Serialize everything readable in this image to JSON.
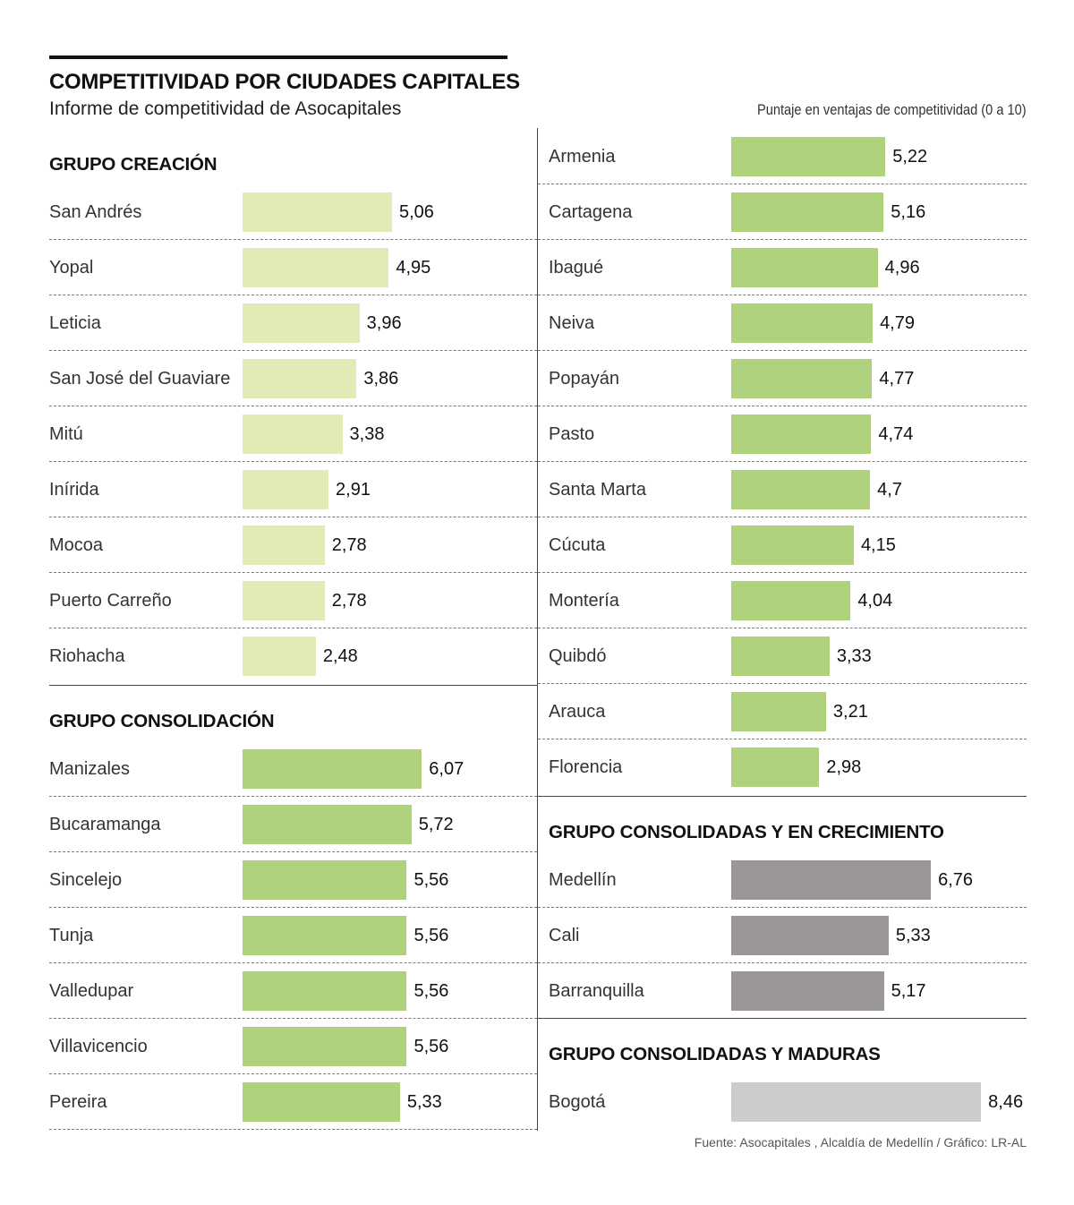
{
  "header": {
    "title": "COMPETITIVIDAD POR CIUDADES CAPITALES",
    "subtitle": "Informe de competitividad de Asocapitales",
    "unit_note": "Puntaje en ventajas de competitividad (0 a 10)"
  },
  "footer": {
    "source": "Fuente: Asocapitales , Alcaldía de Medellín / Gráfico: LR-AL"
  },
  "colors": {
    "creacion": "#e2eab5",
    "consolidacion": "#b0d27c",
    "crecimiento": "#9b9798",
    "maduras": "#cccccc"
  },
  "chart_data": {
    "type": "bar",
    "orientation": "horizontal",
    "title": "COMPETITIVIDAD POR CIUDADES CAPITALES",
    "subtitle": "Informe de competitividad de Asocapitales",
    "xlabel": "Puntaje en ventajas de competitividad (0 a 10)",
    "xlim": [
      0,
      10
    ],
    "grid": false,
    "legend": "none",
    "groups": [
      {
        "name": "GRUPO CREACIÓN",
        "color_key": "creacion",
        "categories": [
          "San Andrés",
          "Yopal",
          "Leticia",
          "San José del Guaviare",
          "Mitú",
          "Inírida",
          "Mocoa",
          "Puerto Carreño",
          "Riohacha"
        ],
        "values": [
          5.06,
          4.95,
          3.96,
          3.86,
          3.38,
          2.91,
          2.78,
          2.78,
          2.48
        ],
        "labels": [
          "5,06",
          "4,95",
          "3,96",
          "3,86",
          "3,38",
          "2,91",
          "2,78",
          "2,78",
          "2,48"
        ]
      },
      {
        "name": "GRUPO CONSOLIDACIÓN",
        "color_key": "consolidacion",
        "categories": [
          "Manizales",
          "Bucaramanga",
          "Sincelejo",
          "Tunja",
          "Valledupar",
          "Villavicencio",
          "Pereira",
          "Armenia",
          "Cartagena",
          "Ibagué",
          "Neiva",
          "Popayán",
          "Pasto",
          "Santa Marta",
          "Cúcuta",
          "Montería",
          "Quibdó",
          "Arauca",
          "Florencia"
        ],
        "values": [
          6.07,
          5.72,
          5.56,
          5.56,
          5.56,
          5.56,
          5.33,
          5.22,
          5.16,
          4.96,
          4.79,
          4.77,
          4.74,
          4.7,
          4.15,
          4.04,
          3.33,
          3.21,
          2.98
        ],
        "labels": [
          "6,07",
          "5,72",
          "5,56",
          "5,56",
          "5,56",
          "5,56",
          "5,33",
          "5,22",
          "5,16",
          "4,96",
          "4,79",
          "4,77",
          "4,74",
          "4,7",
          "4,15",
          "4,04",
          "3,33",
          "3,21",
          "2,98"
        ]
      },
      {
        "name": "GRUPO CONSOLIDADAS Y EN CRECIMIENTO",
        "color_key": "crecimiento",
        "categories": [
          "Medellín",
          "Cali",
          "Barranquilla"
        ],
        "values": [
          6.76,
          5.33,
          5.17
        ],
        "labels": [
          "6,76",
          "5,33",
          "5,17"
        ]
      },
      {
        "name": "GRUPO CONSOLIDADAS Y MADURAS",
        "color_key": "maduras",
        "categories": [
          "Bogotá"
        ],
        "values": [
          8.46
        ],
        "labels": [
          "8,46"
        ]
      }
    ]
  }
}
